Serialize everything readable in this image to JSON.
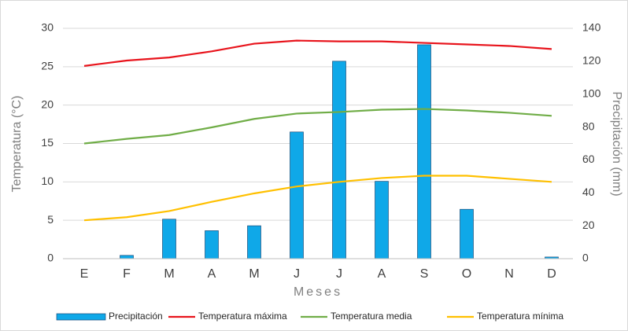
{
  "chart_data": {
    "type": "combo",
    "categories": [
      "E",
      "F",
      "M",
      "A",
      "M",
      "J",
      "J",
      "A",
      "S",
      "O",
      "N",
      "D"
    ],
    "x_label": "Meses",
    "y_label": "Temperatura (°C)",
    "y2_label": "Precipitación (mm)",
    "ylim": [
      0,
      30
    ],
    "yticks": [
      0,
      5,
      10,
      15,
      20,
      25,
      30
    ],
    "y2lim": [
      0,
      140
    ],
    "y2ticks": [
      0,
      20,
      40,
      60,
      80,
      100,
      120,
      140
    ],
    "grid": true,
    "legend": "bottom",
    "series": [
      {
        "name": "Precipitación",
        "type": "bar",
        "axis": "y2",
        "color": "#0fa8e8",
        "values": [
          0,
          2,
          24,
          17,
          20,
          77,
          120,
          47,
          130,
          30,
          0,
          1
        ]
      },
      {
        "name": "Temperatura máxima",
        "type": "line",
        "color": "#e8141c",
        "values": [
          25.1,
          25.8,
          26.2,
          27.0,
          28.0,
          28.4,
          28.3,
          28.3,
          28.1,
          27.9,
          27.7,
          27.3
        ]
      },
      {
        "name": "Temperatura media",
        "type": "line",
        "color": "#70ad47",
        "values": [
          15.0,
          15.6,
          16.1,
          17.1,
          18.2,
          18.9,
          19.1,
          19.4,
          19.5,
          19.3,
          19.0,
          18.6
        ]
      },
      {
        "name": "Temperatura mínima",
        "type": "line",
        "color": "#ffc000",
        "values": [
          5.0,
          5.4,
          6.2,
          7.4,
          8.5,
          9.4,
          10.0,
          10.5,
          10.8,
          10.8,
          10.4,
          10.0
        ]
      }
    ]
  }
}
